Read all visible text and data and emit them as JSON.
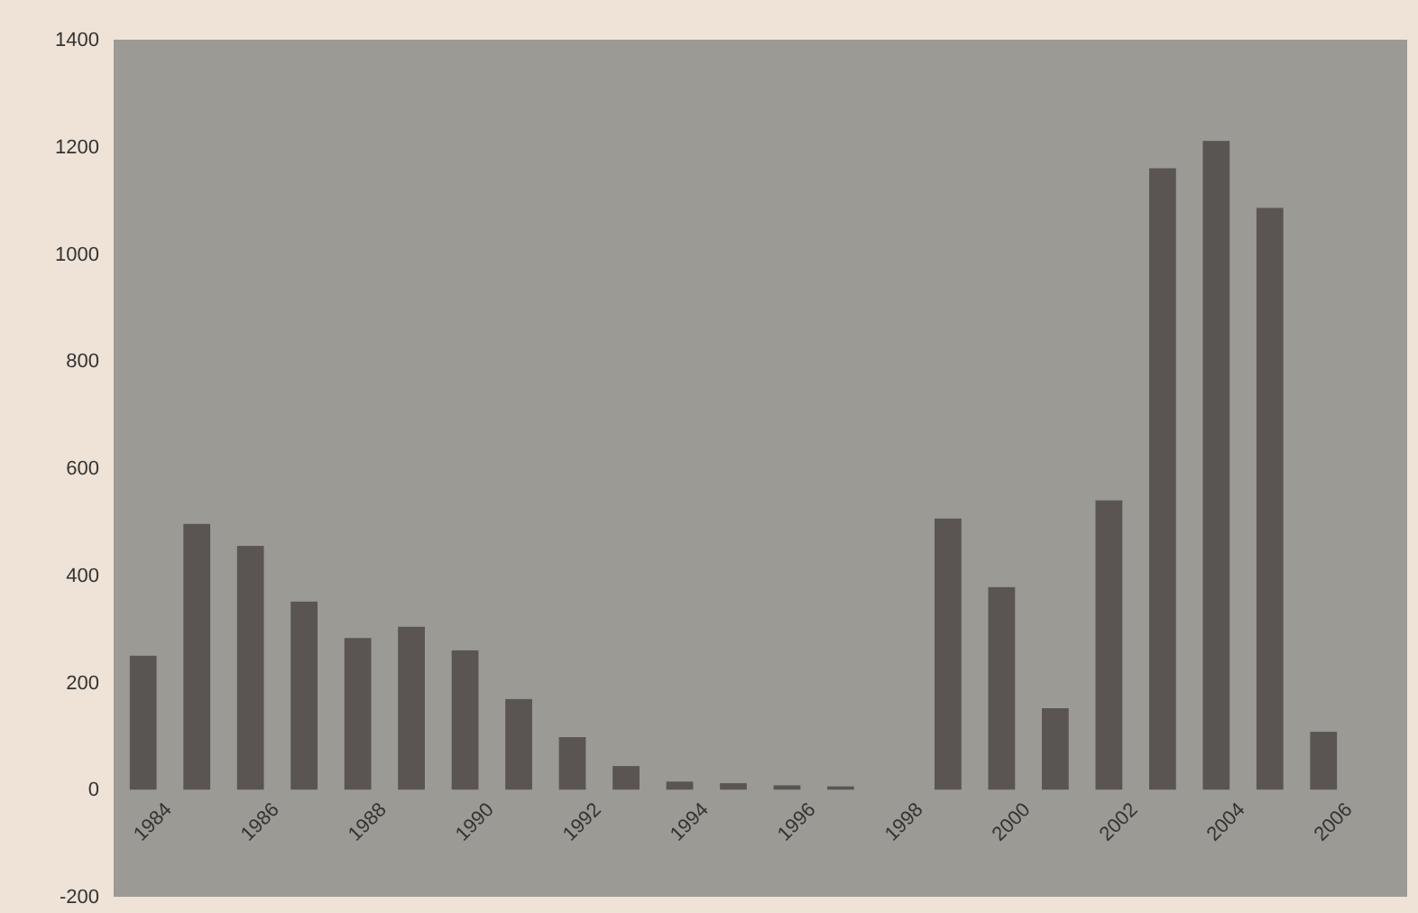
{
  "chart_data": {
    "type": "bar",
    "categories": [
      "1984",
      null,
      "1986",
      null,
      "1988",
      null,
      "1990",
      null,
      "1992",
      null,
      "1994",
      null,
      "1996",
      null,
      "1998",
      null,
      "2000",
      null,
      "2002",
      null,
      "2004",
      null,
      "2006"
    ],
    "values": [
      250,
      496,
      455,
      351,
      283,
      304,
      260,
      169,
      98,
      44,
      15,
      12,
      8,
      6,
      null,
      506,
      378,
      152,
      540,
      1160,
      1211,
      1086,
      108
    ],
    "color": "#5a5552",
    "ylim": [
      -200,
      1400
    ],
    "yticks": [
      -200,
      0,
      200,
      400,
      600,
      800,
      1000,
      1200,
      1400
    ],
    "grid": false
  }
}
